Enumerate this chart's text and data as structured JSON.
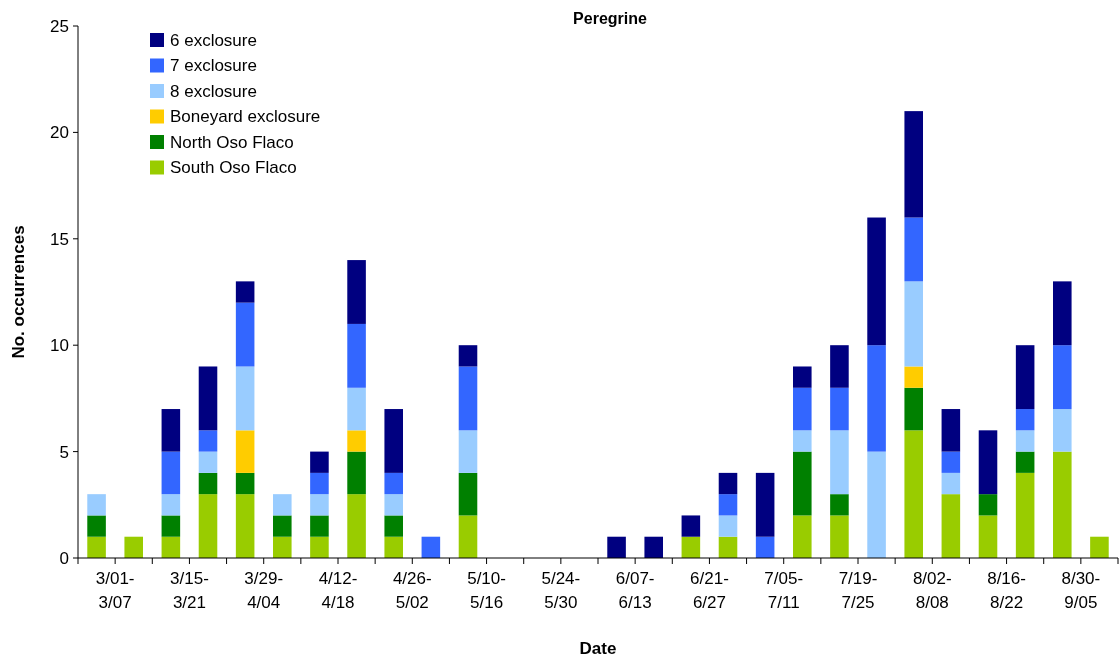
{
  "chart_data": {
    "type": "bar",
    "title": "Peregrine",
    "xlabel": "Date",
    "ylabel": "No. occurrences",
    "stacked": true,
    "legend": "top left",
    "ylim": [
      0,
      25
    ],
    "yticks": [
      0,
      5,
      10,
      15,
      20,
      25
    ],
    "categories": [
      "3/01-3/07",
      null,
      "3/15-3/21",
      null,
      "3/29-4/04",
      null,
      "4/12-4/18",
      null,
      "4/26-5/02",
      null,
      "5/10-5/16",
      null,
      "5/24-5/30",
      null,
      "6/07-6/13",
      null,
      "6/21-6/27",
      null,
      "7/05-7/11",
      null,
      "7/19-7/25",
      null,
      "8/02-8/08",
      null,
      "8/16-8/22",
      null,
      "8/30-9/05",
      null
    ],
    "series": [
      {
        "name": "South Oso Flaco",
        "color": "#99cc00",
        "values": [
          1,
          1,
          1,
          3,
          3,
          1,
          1,
          3,
          1,
          0,
          2,
          0,
          0,
          0,
          0,
          0,
          1,
          1,
          0,
          2,
          2,
          0,
          6,
          3,
          2,
          4,
          5,
          1
        ]
      },
      {
        "name": "North Oso Flaco",
        "color": "#008000",
        "values": [
          1,
          0,
          1,
          1,
          1,
          1,
          1,
          2,
          1,
          0,
          2,
          0,
          0,
          0,
          0,
          0,
          0,
          0,
          0,
          3,
          1,
          0,
          2,
          0,
          1,
          1,
          0,
          0
        ]
      },
      {
        "name": "Boneyard exclosure",
        "color": "#ffcc00",
        "values": [
          0,
          0,
          0,
          0,
          2,
          0,
          0,
          1,
          0,
          0,
          0,
          0,
          0,
          0,
          0,
          0,
          0,
          0,
          0,
          0,
          0,
          0,
          1,
          0,
          0,
          0,
          0,
          0
        ]
      },
      {
        "name": "8 exclosure",
        "color": "#99ccff",
        "values": [
          1,
          0,
          1,
          1,
          3,
          1,
          1,
          2,
          1,
          0,
          2,
          0,
          0,
          0,
          0,
          0,
          0,
          1,
          0,
          1,
          3,
          5,
          4,
          1,
          0,
          1,
          2,
          0
        ]
      },
      {
        "name": "7 exclosure",
        "color": "#3366ff",
        "values": [
          0,
          0,
          2,
          1,
          3,
          0,
          1,
          3,
          1,
          1,
          3,
          0,
          0,
          0,
          0,
          0,
          0,
          1,
          1,
          2,
          2,
          5,
          3,
          1,
          0,
          1,
          3,
          0
        ]
      },
      {
        "name": "6 exclosure",
        "color": "#000080",
        "values": [
          0,
          0,
          2,
          3,
          1,
          0,
          1,
          3,
          3,
          0,
          1,
          0,
          0,
          0,
          1,
          1,
          1,
          1,
          3,
          1,
          2,
          6,
          5,
          2,
          3,
          3,
          3,
          0
        ]
      }
    ]
  }
}
